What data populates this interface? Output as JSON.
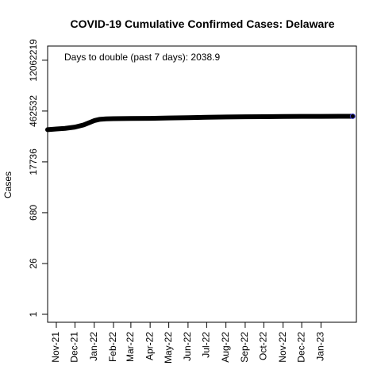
{
  "chart_data": {
    "type": "line",
    "title": "COVID-19 Cumulative Confirmed Cases: Delaware",
    "xlabel": "",
    "ylabel": "Cases",
    "y_scale": "log",
    "grid": false,
    "legend": "none",
    "annotation": "Days to double (past 7 days): 2038.9",
    "line_color": "#000000",
    "marker_edge_color": "#3b3bd0",
    "x_ticks": [
      {
        "date": "2021-11-01",
        "label": "Nov-21"
      },
      {
        "date": "2021-12-01",
        "label": "Dec-21"
      },
      {
        "date": "2022-01-01",
        "label": "Jan-22"
      },
      {
        "date": "2022-02-01",
        "label": "Feb-22"
      },
      {
        "date": "2022-03-01",
        "label": "Mar-22"
      },
      {
        "date": "2022-04-01",
        "label": "Apr-22"
      },
      {
        "date": "2022-05-01",
        "label": "May-22"
      },
      {
        "date": "2022-06-01",
        "label": "Jun-22"
      },
      {
        "date": "2022-07-01",
        "label": "Jul-22"
      },
      {
        "date": "2022-08-01",
        "label": "Aug-22"
      },
      {
        "date": "2022-09-01",
        "label": "Sep-22"
      },
      {
        "date": "2022-10-01",
        "label": "Oct-22"
      },
      {
        "date": "2022-11-01",
        "label": "Nov-22"
      },
      {
        "date": "2022-12-01",
        "label": "Dec-22"
      },
      {
        "date": "2023-01-01",
        "label": "Jan-23"
      }
    ],
    "y_ticks": [
      {
        "value": 1,
        "label": "1"
      },
      {
        "value": 26,
        "label": "26"
      },
      {
        "value": 680,
        "label": "680"
      },
      {
        "value": 17736,
        "label": "17736"
      },
      {
        "value": 462532,
        "label": "462532"
      },
      {
        "value": 12062219,
        "label": "12062219"
      }
    ],
    "x_range": [
      "2021-10-18",
      "2023-02-27"
    ],
    "y_range": [
      0.6,
      30000000
    ],
    "series": [
      {
        "x": [
          "2021-10-18",
          "2021-11-01",
          "2021-11-15",
          "2021-12-01",
          "2021-12-15",
          "2022-01-01",
          "2022-01-10",
          "2022-01-20",
          "2022-02-01",
          "2022-03-01",
          "2022-04-01",
          "2022-05-01",
          "2022-06-01",
          "2022-07-01",
          "2022-08-01",
          "2022-09-01",
          "2022-10-01",
          "2022-11-01",
          "2022-12-01",
          "2023-01-01",
          "2023-02-01",
          "2023-02-21"
        ],
        "y": [
          140000,
          146000,
          152000,
          165000,
          190000,
          250000,
          272000,
          280000,
          284000,
          288000,
          290000,
          297000,
          303000,
          310000,
          316000,
          320000,
          323000,
          325500,
          327500,
          329000,
          330500,
          331500
        ]
      }
    ]
  }
}
